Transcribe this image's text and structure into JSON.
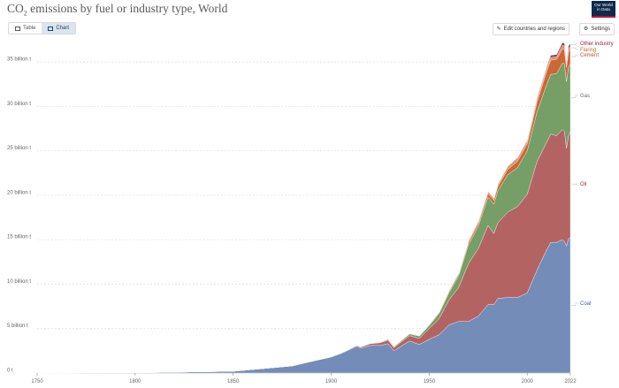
{
  "header": {
    "title_prefix": "CO",
    "title_sub": "2",
    "title_suffix": " emissions by fuel or industry type, World",
    "logo_line1": "Our World",
    "logo_line2": "in Data"
  },
  "tabs": [
    {
      "label": "Table",
      "icon": "table-icon",
      "active": false
    },
    {
      "label": "Chart",
      "icon": "chart-icon",
      "active": true
    }
  ],
  "toolbar": {
    "edit_label": "Edit countries and regions",
    "settings_label": "Settings"
  },
  "chart_data": {
    "type": "area",
    "stacked": true,
    "title": "CO₂ emissions by fuel or industry type, World",
    "xlim": [
      1750,
      2022
    ],
    "ylim": [
      0,
      38000000000
    ],
    "x_ticks": [
      1750,
      1800,
      1850,
      1900,
      1950,
      2000,
      2022
    ],
    "y_ticks": [
      {
        "value": 0,
        "label": "0 t"
      },
      {
        "value": 5000000000,
        "label": "5 billion t"
      },
      {
        "value": 10000000000,
        "label": "10 billion t"
      },
      {
        "value": 15000000000,
        "label": "15 billion t"
      },
      {
        "value": 20000000000,
        "label": "20 billion t"
      },
      {
        "value": 25000000000,
        "label": "25 billion t"
      },
      {
        "value": 30000000000,
        "label": "30 billion t"
      },
      {
        "value": 35000000000,
        "label": "35 billion t"
      }
    ],
    "grid": true,
    "legend": "right-side labels",
    "x": [
      1750,
      1800,
      1850,
      1880,
      1890,
      1900,
      1905,
      1910,
      1913,
      1915,
      1920,
      1925,
      1929,
      1932,
      1937,
      1940,
      1945,
      1950,
      1955,
      1960,
      1965,
      1970,
      1975,
      1980,
      1983,
      1985,
      1990,
      1995,
      2000,
      2005,
      2010,
      2012,
      2015,
      2018,
      2019,
      2020,
      2021,
      2022
    ],
    "series": [
      {
        "name": "Coal",
        "color": "#6d87b4",
        "values": [
          0.01,
          0.03,
          0.2,
          0.8,
          1.3,
          1.8,
          2.2,
          2.7,
          3.0,
          2.8,
          3.1,
          3.1,
          3.3,
          2.5,
          3.2,
          3.6,
          3.2,
          3.8,
          4.3,
          5.4,
          5.8,
          5.8,
          6.4,
          7.7,
          7.7,
          8.4,
          8.5,
          8.5,
          9.0,
          11.6,
          13.9,
          14.7,
          14.7,
          15.0,
          14.8,
          14.3,
          15.1,
          15.2
        ]
      },
      {
        "name": "Oil",
        "color": "#b05b5b",
        "values": [
          0,
          0,
          0,
          0,
          0.01,
          0.02,
          0.03,
          0.08,
          0.1,
          0.12,
          0.2,
          0.3,
          0.4,
          0.35,
          0.5,
          0.6,
          0.7,
          1.2,
          1.8,
          2.8,
          3.8,
          6.5,
          7.6,
          8.9,
          8.0,
          8.5,
          9.6,
          10.2,
          11.1,
          12.2,
          12.1,
          12.2,
          12.0,
          12.4,
          12.4,
          11.0,
          11.5,
          12.0
        ]
      },
      {
        "name": "Gas",
        "color": "#6e9a5e",
        "values": [
          0,
          0,
          0,
          0,
          0,
          0,
          0,
          0,
          0,
          0,
          0.02,
          0.05,
          0.1,
          0.1,
          0.15,
          0.2,
          0.25,
          0.35,
          0.6,
          0.8,
          1.3,
          2.1,
          2.5,
          3.2,
          3.3,
          3.6,
          4.2,
          4.4,
          4.9,
          5.6,
          6.5,
          6.7,
          7.0,
          7.5,
          7.6,
          7.5,
          7.8,
          7.6
        ]
      },
      {
        "name": "Cement",
        "color": "#c8602a",
        "values": [
          0,
          0,
          0,
          0,
          0,
          0.005,
          0.01,
          0.02,
          0.03,
          0.03,
          0.03,
          0.04,
          0.05,
          0.04,
          0.05,
          0.06,
          0.05,
          0.07,
          0.1,
          0.15,
          0.2,
          0.25,
          0.3,
          0.4,
          0.45,
          0.5,
          0.6,
          0.7,
          0.8,
          1.1,
          1.5,
          1.6,
          1.6,
          1.6,
          1.6,
          1.6,
          1.7,
          1.6
        ]
      },
      {
        "name": "Flaring",
        "color": "#d98a55",
        "values": [
          0,
          0,
          0,
          0,
          0,
          0,
          0,
          0,
          0,
          0,
          0,
          0,
          0,
          0,
          0,
          0,
          0.01,
          0.02,
          0.05,
          0.1,
          0.15,
          0.2,
          0.25,
          0.2,
          0.2,
          0.2,
          0.3,
          0.3,
          0.3,
          0.35,
          0.3,
          0.3,
          0.3,
          0.4,
          0.4,
          0.4,
          0.4,
          0.4
        ]
      },
      {
        "name": "Other industry",
        "color": "#8a2b63",
        "values": [
          0,
          0,
          0,
          0,
          0,
          0,
          0,
          0,
          0,
          0,
          0,
          0,
          0,
          0,
          0,
          0,
          0,
          0,
          0,
          0,
          0,
          0,
          0,
          0.05,
          0.05,
          0.05,
          0.05,
          0.1,
          0.1,
          0.15,
          0.2,
          0.25,
          0.25,
          0.3,
          0.3,
          0.3,
          0.3,
          0.3
        ]
      }
    ],
    "unit_scale": 1000000000
  },
  "labels": {
    "other_industry": "Other industry",
    "flaring": "Flaring",
    "cement": "Cement",
    "gas": "Gas",
    "oil": "Oil",
    "coal": "Coal"
  }
}
